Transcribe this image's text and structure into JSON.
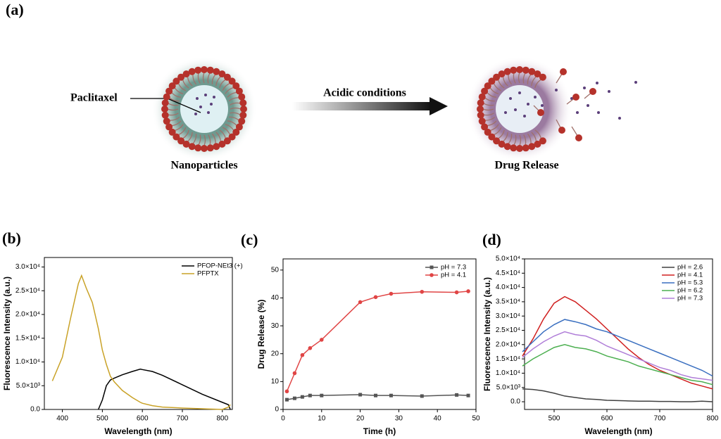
{
  "diagram": {
    "label": "(a)",
    "drug": "Paclitaxel",
    "left_caption": "Nanoparticles",
    "arrow_label": "Acidic conditions",
    "right_caption": "Drug Release"
  },
  "chart_data": [
    {
      "type": "line",
      "panel_label": "(b)",
      "xlabel": "Wavelength (nm)",
      "ylabel": "Fluorescence Intensity (a.u.)",
      "x": [
        375,
        400,
        420,
        440,
        448,
        460,
        475,
        490,
        500,
        510,
        520,
        530,
        550,
        575,
        595,
        600,
        625,
        650,
        700,
        750,
        800,
        815,
        820
      ],
      "series": [
        {
          "name": "PFOP-NEt3 (+)",
          "color": "#000000",
          "values": [
            null,
            null,
            null,
            null,
            null,
            null,
            null,
            0,
            2000,
            5000,
            6200,
            6600,
            7300,
            8000,
            8500,
            8400,
            8000,
            7200,
            5200,
            3200,
            1500,
            1000,
            0
          ]
        },
        {
          "name": "PFPTX",
          "color": "#c9a227",
          "values": [
            6000,
            11000,
            19000,
            26500,
            28200,
            25500,
            22500,
            17000,
            12500,
            9500,
            7000,
            5800,
            4000,
            2500,
            1500,
            1300,
            800,
            500,
            300,
            150,
            0,
            500,
            1000
          ]
        }
      ],
      "xlim": [
        355,
        825
      ],
      "xticks": [
        400,
        500,
        600,
        700,
        800
      ],
      "ylim": [
        0,
        32000
      ],
      "yticks": [
        {
          "value": 0,
          "label": "0.0"
        },
        {
          "value": 5000,
          "label": "5.0×10³"
        },
        {
          "value": 10000,
          "label": "1.0×10⁴"
        },
        {
          "value": 15000,
          "label": "1.5×10⁴"
        },
        {
          "value": 20000,
          "label": "2.0×10⁴"
        },
        {
          "value": 25000,
          "label": "2.5×10⁴"
        },
        {
          "value": 30000,
          "label": "3.0×10⁴"
        }
      ],
      "legend": "upper right"
    },
    {
      "type": "line",
      "panel_label": "(c)",
      "xlabel": "Time (h)",
      "ylabel": "Drug Release (%)",
      "markers": true,
      "x": [
        1,
        3,
        5,
        7,
        10,
        20,
        24,
        28,
        36,
        45,
        48
      ],
      "series": [
        {
          "name": "pH = 7.3",
          "color": "#555555",
          "marker": "square",
          "values": [
            3.5,
            4,
            4.5,
            5,
            5,
            5.3,
            5,
            5,
            4.8,
            5.2,
            5
          ]
        },
        {
          "name": "pH = 4.1",
          "color": "#e04545",
          "marker": "circle",
          "values": [
            6.5,
            13,
            19.5,
            22,
            25,
            38.5,
            40.3,
            41.5,
            42.2,
            42,
            42.4
          ]
        }
      ],
      "xlim": [
        0,
        50
      ],
      "xticks": [
        0,
        10,
        20,
        30,
        40,
        50
      ],
      "ylim": [
        0,
        54
      ],
      "yticks": [
        0,
        10,
        20,
        30,
        40,
        50
      ],
      "legend": "upper right"
    },
    {
      "type": "line",
      "panel_label": "(d)",
      "xlabel": "Wavelength (nm)",
      "ylabel": "Fluorescence Intensity (a.u.)",
      "x": [
        440,
        460,
        480,
        500,
        520,
        540,
        560,
        580,
        600,
        620,
        640,
        660,
        680,
        700,
        720,
        740,
        760,
        780,
        800
      ],
      "series": [
        {
          "name": "pH = 2.6",
          "color": "#404040",
          "values": [
            4500,
            4300,
            3800,
            3000,
            2000,
            1500,
            1000,
            800,
            500,
            400,
            300,
            200,
            200,
            100,
            100,
            0,
            0,
            200,
            0
          ]
        },
        {
          "name": "pH = 4.1",
          "color": "#d02020",
          "values": [
            16000,
            22000,
            29000,
            34500,
            36800,
            35000,
            32000,
            29000,
            25500,
            22000,
            18500,
            15500,
            13000,
            11000,
            9500,
            8000,
            6500,
            5500,
            4500
          ]
        },
        {
          "name": "pH = 5.3",
          "color": "#3a6fc0",
          "values": [
            17500,
            21000,
            24500,
            27000,
            28800,
            28000,
            27000,
            25500,
            24500,
            23000,
            21500,
            20000,
            18500,
            17000,
            15500,
            14000,
            12500,
            11000,
            9000
          ]
        },
        {
          "name": "pH = 6.2",
          "color": "#4caf50",
          "values": [
            12500,
            15000,
            17000,
            19000,
            20000,
            19000,
            18500,
            17500,
            16000,
            15000,
            14000,
            12500,
            11500,
            10500,
            9500,
            8500,
            7500,
            7000,
            6000
          ]
        },
        {
          "name": "pH = 7.3",
          "color": "#b07ed8",
          "values": [
            15500,
            18500,
            21000,
            23000,
            24500,
            23500,
            23000,
            21500,
            19500,
            18000,
            16500,
            15000,
            13500,
            12000,
            11000,
            9500,
            8500,
            8000,
            7500
          ]
        }
      ],
      "xlim": [
        444,
        800
      ],
      "xticks": [
        500,
        600,
        700,
        800
      ],
      "ylim": [
        -2700,
        50000
      ],
      "yticks": [
        {
          "value": 0,
          "label": "0.0"
        },
        {
          "value": 5000,
          "label": "5.0×10³"
        },
        {
          "value": 10000,
          "label": "1.0×10⁴"
        },
        {
          "value": 15000,
          "label": "1.5×10⁴"
        },
        {
          "value": 20000,
          "label": "2.0×10⁴"
        },
        {
          "value": 25000,
          "label": "2.5×10⁴"
        },
        {
          "value": 30000,
          "label": "3.0×10⁴"
        },
        {
          "value": 35000,
          "label": "3.5×10⁴"
        },
        {
          "value": 40000,
          "label": "4.0×10⁴"
        },
        {
          "value": 45000,
          "label": "4.5×10⁴"
        },
        {
          "value": 50000,
          "label": "5.0×10⁴"
        }
      ],
      "legend": "upper right"
    }
  ]
}
